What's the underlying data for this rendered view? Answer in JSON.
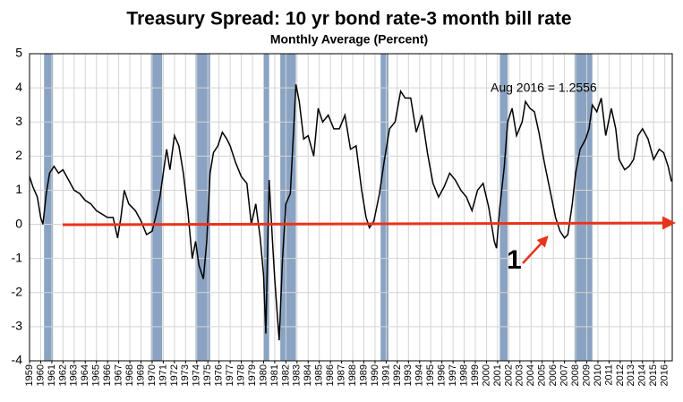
{
  "chart_data": {
    "type": "line",
    "title": "Treasury Spread: 10 yr bond rate-3 month bill rate",
    "subtitle": "Monthly Average (Percent)",
    "annotations": [
      "Aug 2016 = 1.2556",
      "1"
    ],
    "color": "#000000",
    "recession_color": "#8aa3c2",
    "grid": true,
    "xlim": [
      1959,
      2016.67
    ],
    "ylim": [
      -4,
      5
    ],
    "yticks": [
      -4,
      -3,
      -2,
      -1,
      0,
      1,
      2,
      3,
      4,
      5
    ],
    "xticks": [
      1959,
      1960,
      1961,
      1962,
      1963,
      1964,
      1965,
      1966,
      1967,
      1968,
      1969,
      1970,
      1971,
      1972,
      1973,
      1974,
      1975,
      1976,
      1977,
      1978,
      1979,
      1980,
      1981,
      1982,
      1983,
      1984,
      1985,
      1986,
      1987,
      1988,
      1989,
      1990,
      1991,
      1992,
      1993,
      1994,
      1995,
      1996,
      1997,
      1998,
      1999,
      2000,
      2001,
      2002,
      2003,
      2004,
      2005,
      2006,
      2007,
      2008,
      2009,
      2010,
      2011,
      2012,
      2013,
      2014,
      2015,
      2016
    ],
    "recessions": [
      [
        1960.3,
        1961.1
      ],
      [
        1969.9,
        1970.9
      ],
      [
        1973.9,
        1975.2
      ],
      [
        1980.0,
        1980.5
      ],
      [
        1981.5,
        1982.9
      ],
      [
        1990.5,
        1991.2
      ],
      [
        2001.2,
        2001.9
      ],
      [
        2007.9,
        2009.5
      ]
    ],
    "x": [
      1959.0,
      1959.3,
      1959.7,
      1960.0,
      1960.2,
      1960.5,
      1960.8,
      1961.2,
      1961.6,
      1962.0,
      1962.5,
      1963.0,
      1963.5,
      1964.0,
      1964.5,
      1965.0,
      1965.5,
      1966.0,
      1966.5,
      1966.9,
      1967.2,
      1967.5,
      1967.9,
      1968.5,
      1969.0,
      1969.5,
      1970.0,
      1970.3,
      1970.7,
      1971.0,
      1971.3,
      1971.6,
      1972.0,
      1972.4,
      1972.8,
      1973.2,
      1973.6,
      1973.9,
      1974.2,
      1974.6,
      1974.9,
      1975.2,
      1975.5,
      1975.9,
      1976.3,
      1976.7,
      1977.0,
      1977.5,
      1978.0,
      1978.5,
      1978.9,
      1979.3,
      1979.7,
      1980.0,
      1980.2,
      1980.5,
      1980.8,
      1981.0,
      1981.4,
      1981.7,
      1982.0,
      1982.4,
      1982.7,
      1982.9,
      1983.2,
      1983.6,
      1984.0,
      1984.5,
      1984.9,
      1985.3,
      1985.8,
      1986.3,
      1986.8,
      1987.3,
      1987.8,
      1988.3,
      1988.8,
      1989.2,
      1989.5,
      1989.9,
      1990.4,
      1990.8,
      1991.3,
      1991.8,
      1992.3,
      1992.7,
      1993.2,
      1993.7,
      1994.2,
      1994.7,
      1995.2,
      1995.7,
      1996.2,
      1996.7,
      1997.2,
      1997.7,
      1998.2,
      1998.7,
      1999.2,
      1999.7,
      2000.2,
      2000.7,
      2000.9,
      2001.2,
      2001.6,
      2001.9,
      2002.3,
      2002.7,
      2003.2,
      2003.5,
      2003.9,
      2004.3,
      2004.7,
      2005.2,
      2005.7,
      2006.2,
      2006.6,
      2007.0,
      2007.3,
      2007.7,
      2008.0,
      2008.4,
      2008.9,
      2009.2,
      2009.5,
      2009.9,
      2010.3,
      2010.7,
      2011.2,
      2011.6,
      2011.9,
      2012.4,
      2012.8,
      2013.2,
      2013.6,
      2014.0,
      2014.5,
      2015.0,
      2015.5,
      2015.9,
      2016.3,
      2016.6
    ],
    "values": [
      1.4,
      1.1,
      0.8,
      0.2,
      0.0,
      0.9,
      1.5,
      1.7,
      1.5,
      1.6,
      1.3,
      1.0,
      0.9,
      0.7,
      0.6,
      0.4,
      0.3,
      0.2,
      0.2,
      -0.4,
      0.2,
      1.0,
      0.6,
      0.4,
      0.1,
      -0.3,
      -0.2,
      0.2,
      0.8,
      1.5,
      2.2,
      1.6,
      2.6,
      2.3,
      1.5,
      0.4,
      -1.0,
      -0.5,
      -1.2,
      -1.6,
      -0.5,
      1.5,
      2.1,
      2.3,
      2.7,
      2.5,
      2.3,
      1.8,
      1.4,
      1.2,
      0.0,
      0.6,
      -0.4,
      -1.5,
      -3.2,
      1.3,
      -0.5,
      -1.6,
      -3.4,
      -1.0,
      0.6,
      0.9,
      2.8,
      4.1,
      3.6,
      2.5,
      2.6,
      2.0,
      3.4,
      3.0,
      3.2,
      2.8,
      2.8,
      3.2,
      2.2,
      2.3,
      1.0,
      0.2,
      -0.1,
      0.1,
      0.9,
      1.8,
      2.8,
      3.0,
      3.9,
      3.7,
      3.7,
      2.7,
      3.2,
      2.1,
      1.2,
      0.8,
      1.1,
      1.5,
      1.3,
      1.0,
      0.8,
      0.4,
      1.0,
      1.2,
      0.5,
      -0.5,
      -0.7,
      0.5,
      1.7,
      3.0,
      3.4,
      2.6,
      3.0,
      3.6,
      3.4,
      3.3,
      2.7,
      1.8,
      1.0,
      0.2,
      -0.2,
      -0.4,
      -0.3,
      0.6,
      1.5,
      2.2,
      2.5,
      2.8,
      3.5,
      3.3,
      3.7,
      2.6,
      3.4,
      2.8,
      1.9,
      1.6,
      1.7,
      1.9,
      2.6,
      2.8,
      2.5,
      1.9,
      2.2,
      2.1,
      1.7,
      1.2556
    ]
  }
}
